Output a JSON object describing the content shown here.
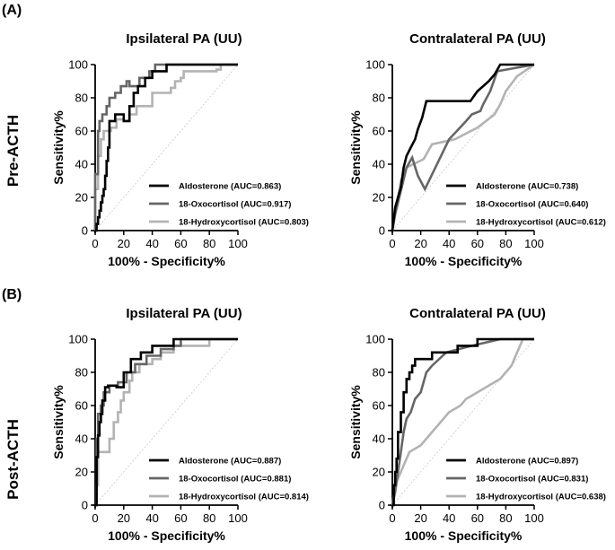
{
  "figure": {
    "sections": [
      {
        "label": "(A)",
        "row_label": "Pre-ACTH"
      },
      {
        "label": "(B)",
        "row_label": "Post-ACTH"
      }
    ],
    "series_colors": [
      "#000000",
      "#666666",
      "#b3b3b3"
    ],
    "reference_line_color": "#c8c8c8"
  },
  "chart_data": [
    {
      "type": "line",
      "title": "Ipsilateral PA (UU)",
      "xlabel": "100% - Specificity%",
      "ylabel": "Sensitivity%",
      "xlim": [
        0,
        100
      ],
      "ylim": [
        0,
        100
      ],
      "xticks": [
        "0",
        "20",
        "40",
        "60",
        "80",
        "100"
      ],
      "yticks": [
        "0",
        "20",
        "40",
        "60",
        "80",
        "100"
      ],
      "series": [
        {
          "name": "Aldosterone (AUC=0.863)",
          "x": [
            0,
            1,
            1,
            2,
            2,
            3,
            3,
            4,
            4,
            5,
            5,
            6,
            6,
            7,
            7,
            8,
            8,
            9,
            9,
            10,
            10,
            14,
            14,
            20,
            20,
            24,
            24,
            27,
            27,
            30,
            30,
            35,
            35,
            40,
            40,
            50,
            50,
            100
          ],
          "y": [
            0,
            0,
            4,
            4,
            8,
            8,
            12,
            12,
            17,
            17,
            21,
            21,
            25,
            25,
            33,
            33,
            42,
            42,
            50,
            50,
            66,
            66,
            70,
            70,
            66,
            66,
            75,
            75,
            83,
            83,
            87,
            87,
            92,
            92,
            96,
            96,
            100,
            100
          ]
        },
        {
          "name": "18-Oxocortisol (AUC=0.917)",
          "x": [
            0,
            0,
            2,
            2,
            3,
            3,
            5,
            5,
            8,
            8,
            10,
            10,
            14,
            14,
            18,
            18,
            22,
            22,
            24,
            24,
            31,
            31,
            38,
            38,
            42,
            42,
            50,
            50,
            100
          ],
          "y": [
            0,
            34,
            34,
            60,
            60,
            66,
            66,
            70,
            70,
            75,
            75,
            80,
            80,
            83,
            83,
            87,
            87,
            90,
            90,
            87,
            87,
            92,
            92,
            96,
            96,
            100,
            100,
            100,
            100
          ]
        },
        {
          "name": "18-Hydroxycortisol (AUC=0.803)",
          "x": [
            0,
            0,
            2,
            2,
            4,
            4,
            6,
            6,
            11,
            11,
            15,
            15,
            20,
            20,
            24,
            24,
            29,
            29,
            40,
            40,
            53,
            53,
            56,
            56,
            60,
            60,
            62,
            62,
            85,
            85,
            88,
            88,
            100
          ],
          "y": [
            0,
            25,
            25,
            45,
            45,
            55,
            55,
            60,
            60,
            62,
            62,
            67,
            67,
            66,
            66,
            70,
            70,
            75,
            75,
            83,
            83,
            86,
            86,
            90,
            90,
            92,
            92,
            96,
            96,
            97,
            97,
            100,
            100
          ]
        }
      ]
    },
    {
      "type": "line",
      "title": "Contralateral PA (UU)",
      "xlabel": "100% - Specificity%",
      "ylabel": "Sensitivity%",
      "xlim": [
        0,
        100
      ],
      "ylim": [
        0,
        100
      ],
      "xticks": [
        "0",
        "20",
        "40",
        "60",
        "80",
        "100"
      ],
      "yticks": [
        "0",
        "20",
        "40",
        "60",
        "80",
        "100"
      ],
      "series": [
        {
          "name": "Aldosterone (AUC=0.738)",
          "x": [
            0,
            2,
            2,
            4,
            4,
            6,
            6,
            8,
            8,
            10,
            10,
            13,
            13,
            16,
            16,
            18,
            18,
            21,
            21,
            24,
            24,
            55,
            55,
            60,
            60,
            64,
            64,
            68,
            68,
            72,
            72,
            76,
            76,
            100
          ],
          "y": [
            0,
            14,
            14,
            20,
            20,
            26,
            26,
            38,
            38,
            45,
            45,
            50,
            50,
            55,
            55,
            61,
            61,
            68,
            68,
            78,
            78,
            78,
            78,
            84,
            84,
            87,
            87,
            90,
            90,
            94,
            94,
            100,
            100,
            100
          ]
        },
        {
          "name": "18-Oxocortisol (AUC=0.640)",
          "x": [
            0,
            2,
            10,
            14,
            14,
            18,
            18,
            23,
            23,
            40,
            40,
            52,
            52,
            56,
            56,
            62,
            62,
            64,
            64,
            69,
            69,
            74,
            74,
            100
          ],
          "y": [
            0,
            10,
            38,
            44,
            44,
            33,
            33,
            25,
            25,
            55,
            55,
            66,
            66,
            70,
            70,
            72,
            72,
            76,
            76,
            84,
            84,
            96,
            96,
            100
          ]
        },
        {
          "name": "18-Hydroxycortisol (AUC=0.612)",
          "x": [
            0,
            6,
            6,
            10,
            10,
            22,
            22,
            28,
            28,
            44,
            44,
            60,
            60,
            72,
            72,
            76,
            76,
            80,
            80,
            88,
            88,
            100
          ],
          "y": [
            0,
            30,
            30,
            38,
            38,
            43,
            43,
            52,
            52,
            55,
            55,
            62,
            62,
            70,
            70,
            76,
            76,
            84,
            84,
            93,
            93,
            100
          ]
        }
      ]
    },
    {
      "type": "line",
      "title": "Ipsilateral PA (UU)",
      "xlabel": "100% - Specificity%",
      "ylabel": "Sensitivity%",
      "xlim": [
        0,
        100
      ],
      "ylim": [
        0,
        100
      ],
      "xticks": [
        "0",
        "20",
        "40",
        "60",
        "80",
        "100"
      ],
      "yticks": [
        "0",
        "20",
        "40",
        "60",
        "80",
        "100"
      ],
      "series": [
        {
          "name": "Aldosterone (AUC=0.887)",
          "x": [
            0,
            1,
            1,
            2,
            2,
            3,
            3,
            4,
            4,
            5,
            5,
            7,
            7,
            9,
            9,
            15,
            15,
            20,
            20,
            25,
            25,
            28,
            28,
            32,
            32,
            40,
            40,
            55,
            55,
            58,
            58,
            100
          ],
          "y": [
            0,
            0,
            29,
            29,
            42,
            42,
            50,
            50,
            55,
            55,
            63,
            63,
            71,
            71,
            72,
            72,
            71,
            71,
            80,
            80,
            88,
            88,
            88,
            88,
            92,
            92,
            96,
            96,
            100,
            100,
            100,
            100
          ]
        },
        {
          "name": "18-Oxocortisol (AUC=0.881)",
          "x": [
            0,
            1,
            1,
            2,
            2,
            4,
            4,
            6,
            6,
            10,
            10,
            16,
            16,
            22,
            22,
            28,
            28,
            36,
            36,
            46,
            46,
            55,
            55,
            60,
            60,
            100
          ],
          "y": [
            0,
            0,
            40,
            40,
            55,
            55,
            60,
            60,
            68,
            68,
            72,
            72,
            74,
            74,
            80,
            80,
            85,
            85,
            90,
            90,
            94,
            94,
            96,
            96,
            100,
            100
          ]
        },
        {
          "name": "18-Hydroxycortisol (AUC=0.814)",
          "x": [
            0,
            1,
            1,
            2,
            2,
            10,
            10,
            13,
            13,
            16,
            16,
            18,
            18,
            20,
            20,
            24,
            24,
            26,
            26,
            31,
            31,
            40,
            40,
            46,
            46,
            55,
            55,
            80,
            80,
            100
          ],
          "y": [
            0,
            0,
            12,
            12,
            32,
            32,
            40,
            40,
            50,
            50,
            56,
            56,
            63,
            63,
            68,
            68,
            75,
            75,
            80,
            80,
            85,
            85,
            88,
            88,
            92,
            92,
            96,
            96,
            100,
            100
          ]
        }
      ]
    },
    {
      "type": "line",
      "title": "Contralateral PA (UU)",
      "xlabel": "100% - Specificity%",
      "ylabel": "Sensitivity%",
      "xlim": [
        0,
        100
      ],
      "ylim": [
        0,
        100
      ],
      "xticks": [
        "0",
        "20",
        "40",
        "60",
        "80",
        "100"
      ],
      "yticks": [
        "0",
        "20",
        "40",
        "60",
        "80",
        "100"
      ],
      "series": [
        {
          "name": "Aldosterone (AUC=0.897)",
          "x": [
            0,
            1,
            1,
            2,
            2,
            3,
            3,
            4,
            4,
            6,
            6,
            8,
            8,
            10,
            10,
            12,
            12,
            14,
            14,
            16,
            16,
            28,
            28,
            46,
            46,
            60,
            60,
            100
          ],
          "y": [
            0,
            0,
            12,
            12,
            20,
            20,
            28,
            28,
            44,
            44,
            56,
            56,
            68,
            68,
            76,
            76,
            80,
            80,
            84,
            84,
            88,
            88,
            92,
            92,
            96,
            96,
            100,
            100
          ]
        },
        {
          "name": "18-Oxocortisol (AUC=0.831)",
          "x": [
            0,
            2,
            2,
            4,
            4,
            6,
            6,
            8,
            8,
            10,
            10,
            13,
            13,
            16,
            16,
            20,
            20,
            24,
            24,
            28,
            28,
            38,
            38,
            56,
            56,
            76,
            76,
            100
          ],
          "y": [
            0,
            8,
            8,
            20,
            20,
            32,
            32,
            44,
            44,
            52,
            52,
            56,
            56,
            64,
            64,
            68,
            68,
            80,
            80,
            84,
            84,
            92,
            92,
            96,
            96,
            100,
            100,
            100
          ]
        },
        {
          "name": "18-Hydroxycortisol (AUC=0.638)",
          "x": [
            0,
            2,
            2,
            8,
            8,
            12,
            12,
            20,
            20,
            28,
            28,
            40,
            40,
            48,
            48,
            52,
            52,
            60,
            60,
            68,
            68,
            76,
            76,
            80,
            80,
            84,
            84,
            88,
            88,
            92,
            92,
            100
          ],
          "y": [
            0,
            12,
            12,
            24,
            24,
            32,
            32,
            36,
            36,
            44,
            44,
            56,
            56,
            60,
            60,
            64,
            64,
            68,
            68,
            72,
            72,
            76,
            76,
            80,
            80,
            84,
            84,
            92,
            92,
            100,
            100,
            100
          ]
        }
      ]
    }
  ]
}
